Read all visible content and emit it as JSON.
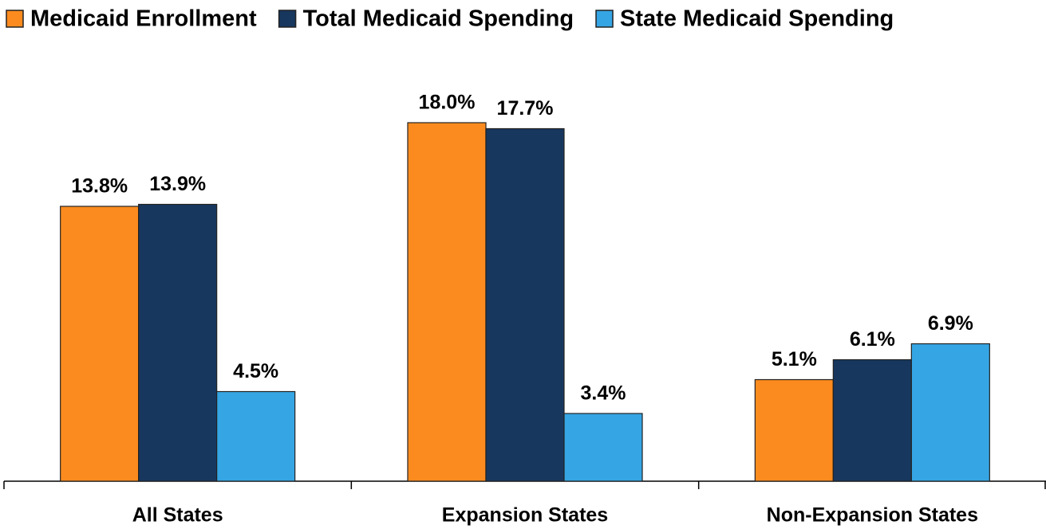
{
  "chart_data": {
    "type": "bar",
    "categories": [
      "All States",
      "Expansion States",
      "Non-Expansion States"
    ],
    "series": [
      {
        "name": "Medicaid Enrollment",
        "color": "#fb8b1e",
        "values": [
          13.8,
          18.0,
          5.1
        ],
        "value_labels": [
          "13.8%",
          "18.0%",
          "5.1%"
        ]
      },
      {
        "name": "Total Medicaid Spending",
        "color": "#17375e",
        "values": [
          13.9,
          17.7,
          6.1
        ],
        "value_labels": [
          "13.9%",
          "17.7%",
          "6.1%"
        ]
      },
      {
        "name": "State Medicaid Spending",
        "color": "#36a5e4",
        "values": [
          4.5,
          3.4,
          6.9
        ],
        "value_labels": [
          "4.5%",
          "3.4%",
          "6.9%"
        ]
      }
    ],
    "legend": "top"
  }
}
